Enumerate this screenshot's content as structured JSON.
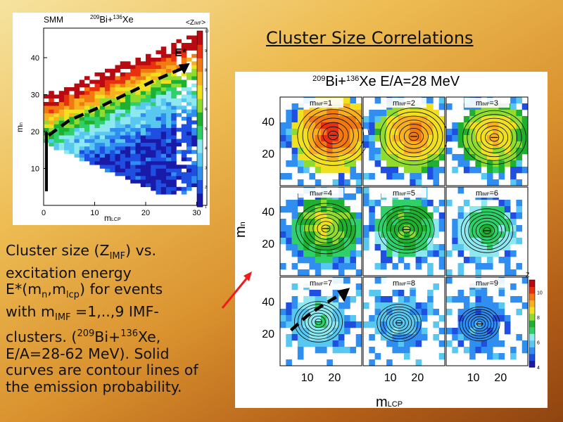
{
  "slide": {
    "title": "Cluster Size Correlations",
    "caption": {
      "l1a": "Cluster size (Z",
      "l1sub": "IMF",
      "l1b": ") vs.",
      "l2": "excitation energy",
      "l3a": "E*(m",
      "l3sub1": "n",
      "l3b": ",m",
      "l3sub2": "lcp",
      "l3c": ") for events",
      "l4a": "with m",
      "l4sub": "IMF",
      "l4b": " =1,..,9 IMF-",
      "l5a": "clusters. (",
      "l5sup1": "209",
      "l5b": "Bi+",
      "l5sup2": "136",
      "l5c": "Xe,",
      "l6": "E/A=28-62 MeV). Solid",
      "l7": "curves are contour lines of",
      "l8": "the emission probability."
    },
    "arrow_color": "#ee1c1c"
  },
  "chart_data": [
    {
      "type": "heatmap",
      "label": "SMM",
      "reaction": {
        "sup1": "209",
        "b1": "Bi+",
        "sup2": "136",
        "b2": "Xe"
      },
      "colorbar_label": "<Z",
      "colorbar_label_sub": "IMF",
      "colorbar_label_end": ">",
      "annotation": "E*",
      "xlabel": "m",
      "xlabel_sub": "LCP",
      "ylabel": "m",
      "ylabel_sub": "n",
      "xlim": [
        0,
        32
      ],
      "ylim": [
        0,
        48
      ],
      "xticks": [
        "0",
        "10",
        "20",
        "30"
      ],
      "yticks": [
        "10",
        "20",
        "30",
        "40"
      ],
      "colorbar_ticks": [
        "1",
        "2",
        "3",
        "4",
        "5",
        "6",
        "7",
        "8",
        "9",
        "10"
      ],
      "colorbar_range": [
        1,
        10
      ],
      "trend_line": [
        [
          1,
          19
        ],
        [
          5,
          23
        ],
        [
          10,
          26
        ],
        [
          16,
          30
        ],
        [
          22,
          34
        ],
        [
          27,
          37
        ]
      ]
    },
    {
      "type": "heatmap",
      "title": {
        "sup1": "209",
        "b1": "Bi+",
        "sup2": "136",
        "b2": "Xe E/A=28 MeV"
      },
      "xlabel": "m",
      "xlabel_sub": "LCP",
      "ylabel": "m",
      "ylabel_sub": "n",
      "xlim": [
        0,
        30
      ],
      "ylim": [
        0,
        55
      ],
      "xticks": [
        "10",
        "20"
      ],
      "yticks": [
        "20",
        "40"
      ],
      "colorbar_label": "Z",
      "colorbar_ticks": [
        "4",
        "6",
        "8",
        "10"
      ],
      "colorbar_range": [
        4,
        11
      ],
      "panels": [
        {
          "label": "m",
          "label_sub": "IMF",
          "label_value": "=1"
        },
        {
          "label": "m",
          "label_sub": "IMF",
          "label_value": "=2"
        },
        {
          "label": "m",
          "label_sub": "IMF",
          "label_value": "=3"
        },
        {
          "label": "m",
          "label_sub": "IMF",
          "label_value": "=4"
        },
        {
          "label": "m",
          "label_sub": "IMF",
          "label_value": "=5"
        },
        {
          "label": "m",
          "label_sub": "IMF",
          "label_value": "=6"
        },
        {
          "label": "m",
          "label_sub": "IMF",
          "label_value": "=7"
        },
        {
          "label": "m",
          "label_sub": "IMF",
          "label_value": "=8"
        },
        {
          "label": "m",
          "label_sub": "IMF",
          "label_value": "=9"
        }
      ],
      "trend_line": [
        [
          4,
          22
        ],
        [
          10,
          31
        ],
        [
          16,
          38
        ],
        [
          22,
          44
        ]
      ]
    }
  ]
}
